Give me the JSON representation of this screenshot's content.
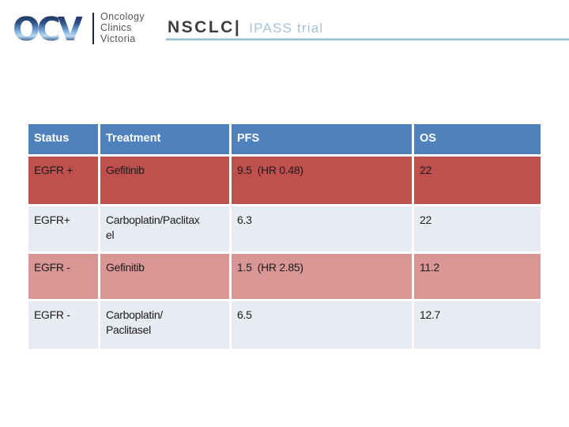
{
  "logo": {
    "acronym": "OCV",
    "org_lines": [
      "Oncology",
      "Clinics",
      "Victoria"
    ],
    "colors": {
      "gradient_dark": "#15233E",
      "gradient_mid": "#2F5389",
      "gradient_light": "#BFDAF0",
      "separator": "#1B2B47",
      "org_text": "#555555"
    }
  },
  "header": {
    "title": "NSCLC|",
    "subtitle": "IPASS trial",
    "colors": {
      "title": "#3D3D3D",
      "subtitle": "#A6C1D8",
      "underline": "#7FAECB"
    }
  },
  "table": {
    "columns": [
      "Status",
      "Treatment",
      "PFS",
      "OS"
    ],
    "rows": [
      {
        "status": "EGFR +",
        "treatment": "Gefitinib",
        "pfs": "9.5  (HR 0.48)",
        "os": "22"
      },
      {
        "status": "EGFR+",
        "treatment": "Carboplatin/Paclitax\nel",
        "pfs": "6.3",
        "os": "22"
      },
      {
        "status": "EGFR -",
        "treatment": "Gefinitib",
        "pfs": "1.5  (HR 2.85)",
        "os": "11.2"
      },
      {
        "status": "EGFR -",
        "treatment": "Carboplatin/\nPaclitasel",
        "pfs": "6.5",
        "os": "12.7"
      }
    ],
    "colors": {
      "header_bg": "#4F81BD",
      "header_text": "#FFFFFF",
      "row_red": "#C0504D",
      "row_pink": "#D99694",
      "row_light": "#E9EBF2",
      "cell_text": "#1C1C1C"
    }
  }
}
